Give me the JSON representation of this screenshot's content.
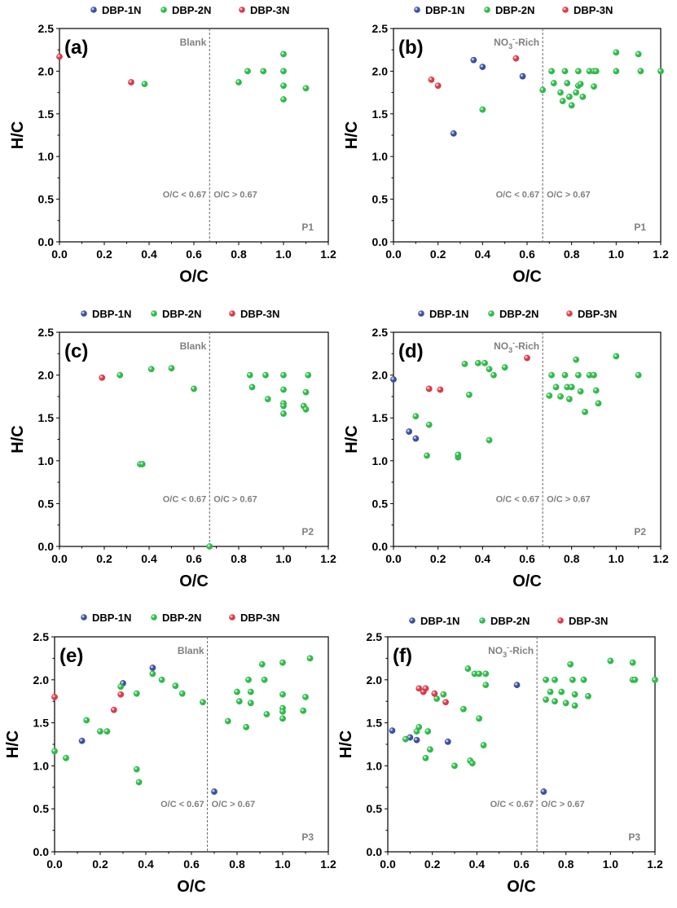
{
  "legend": [
    {
      "name": "DBP-1N",
      "color": "#3c4fa0"
    },
    {
      "name": "DBP-2N",
      "color": "#2fba4a"
    },
    {
      "name": "DBP-3N",
      "color": "#d93a4a"
    }
  ],
  "divider": 0.67,
  "region_left": "O/C < 0.67",
  "region_right": "O/C > 0.67",
  "chart_data": [
    {
      "type": "scatter",
      "label": "(a)",
      "condition": "Blank",
      "condition_sub": "",
      "phase": "P1",
      "xlabel": "O/C",
      "ylabel": "H/C",
      "xlim": [
        0,
        1.2
      ],
      "ylim": [
        0,
        2.5
      ],
      "xticks": [
        "0.0",
        "0.2",
        "0.4",
        "0.6",
        "0.8",
        "1.0",
        "1.2"
      ],
      "yticks": [
        "0.0",
        "0.5",
        "1.0",
        "1.5",
        "2.0",
        "2.5"
      ],
      "grid": false,
      "series": [
        {
          "name": "DBP-1N",
          "points": []
        },
        {
          "name": "DBP-2N",
          "points": [
            [
              0.38,
              1.85
            ],
            [
              0.8,
              1.87
            ],
            [
              0.84,
              2.0
            ],
            [
              0.91,
              2.0
            ],
            [
              1.0,
              2.2
            ],
            [
              1.0,
              2.0
            ],
            [
              1.0,
              1.83
            ],
            [
              1.0,
              1.67
            ],
            [
              1.1,
              1.8
            ]
          ]
        },
        {
          "name": "DBP-3N",
          "points": [
            [
              0.0,
              2.17
            ],
            [
              0.32,
              1.87
            ]
          ]
        }
      ]
    },
    {
      "type": "scatter",
      "label": "(b)",
      "condition": "NO",
      "condition_sub": "3",
      "condition_sup": "-",
      "condition_tail": "-Rich",
      "phase": "P1",
      "xlabel": "O/C",
      "ylabel": "H/C",
      "xlim": [
        0,
        1.2
      ],
      "ylim": [
        0,
        2.5
      ],
      "xticks": [
        "0.0",
        "0.2",
        "0.4",
        "0.6",
        "0.8",
        "1.0",
        "1.2"
      ],
      "yticks": [
        "0.0",
        "0.5",
        "1.0",
        "1.5",
        "2.0",
        "2.5"
      ],
      "grid": false,
      "series": [
        {
          "name": "DBP-1N",
          "points": [
            [
              0.27,
              1.27
            ],
            [
              0.36,
              2.13
            ],
            [
              0.4,
              2.05
            ],
            [
              0.58,
              1.94
            ]
          ]
        },
        {
          "name": "DBP-2N",
          "points": [
            [
              0.4,
              1.55
            ],
            [
              0.67,
              1.78
            ],
            [
              0.71,
              2.0
            ],
            [
              0.72,
              1.86
            ],
            [
              0.75,
              1.75
            ],
            [
              0.76,
              1.65
            ],
            [
              0.77,
              2.0
            ],
            [
              0.78,
              1.86
            ],
            [
              0.79,
              1.7
            ],
            [
              0.8,
              1.6
            ],
            [
              0.82,
              1.75
            ],
            [
              0.83,
              2.0
            ],
            [
              0.83,
              1.83
            ],
            [
              0.84,
              1.85
            ],
            [
              0.85,
              1.7
            ],
            [
              0.88,
              2.0
            ],
            [
              0.9,
              2.0
            ],
            [
              0.9,
              1.82
            ],
            [
              0.91,
              2.0
            ],
            [
              1.0,
              2.22
            ],
            [
              1.0,
              2.0
            ],
            [
              1.1,
              2.2
            ],
            [
              1.11,
              2.0
            ],
            [
              1.2,
              2.0
            ]
          ]
        },
        {
          "name": "DBP-3N",
          "points": [
            [
              0.17,
              1.9
            ],
            [
              0.2,
              1.83
            ],
            [
              0.55,
              2.15
            ]
          ]
        }
      ]
    },
    {
      "type": "scatter",
      "label": "(c)",
      "condition": "Blank",
      "condition_sub": "",
      "phase": "P2",
      "xlabel": "O/C",
      "ylabel": "H/C",
      "xlim": [
        0,
        1.2
      ],
      "ylim": [
        0,
        2.5
      ],
      "xticks": [
        "0.0",
        "0.2",
        "0.4",
        "0.6",
        "0.8",
        "1.0",
        "1.2"
      ],
      "yticks": [
        "0.0",
        "0.5",
        "1.0",
        "1.5",
        "2.0",
        "2.5"
      ],
      "grid": false,
      "series": [
        {
          "name": "DBP-1N",
          "points": []
        },
        {
          "name": "DBP-2N",
          "points": [
            [
              0.27,
              2.0
            ],
            [
              0.36,
              0.96
            ],
            [
              0.37,
              0.96
            ],
            [
              0.41,
              2.07
            ],
            [
              0.5,
              2.08
            ],
            [
              0.6,
              1.84
            ],
            [
              0.67,
              0.0
            ],
            [
              0.85,
              2.0
            ],
            [
              0.86,
              1.86
            ],
            [
              0.92,
              2.0
            ],
            [
              0.93,
              1.72
            ],
            [
              1.0,
              2.0
            ],
            [
              1.0,
              1.83
            ],
            [
              1.0,
              1.67
            ],
            [
              1.0,
              1.64
            ],
            [
              1.0,
              1.55
            ],
            [
              1.09,
              1.64
            ],
            [
              1.1,
              1.8
            ],
            [
              1.1,
              1.6
            ],
            [
              1.11,
              2.0
            ]
          ]
        },
        {
          "name": "DBP-3N",
          "points": [
            [
              0.19,
              1.97
            ]
          ]
        }
      ]
    },
    {
      "type": "scatter",
      "label": "(d)",
      "condition": "NO",
      "condition_sub": "3",
      "condition_sup": "-",
      "condition_tail": "-Rich",
      "phase": "P2",
      "xlabel": "O/C",
      "ylabel": "H/C",
      "xlim": [
        0,
        1.2
      ],
      "ylim": [
        0,
        2.5
      ],
      "xticks": [
        "0.0",
        "0.2",
        "0.4",
        "0.6",
        "0.8",
        "1.0",
        "1.2"
      ],
      "yticks": [
        "0.0",
        "0.5",
        "1.0",
        "1.5",
        "2.0",
        "2.5"
      ],
      "grid": false,
      "series": [
        {
          "name": "DBP-1N",
          "points": [
            [
              0.0,
              1.95
            ],
            [
              0.07,
              1.34
            ],
            [
              0.1,
              1.26
            ]
          ]
        },
        {
          "name": "DBP-2N",
          "points": [
            [
              0.1,
              1.52
            ],
            [
              0.15,
              1.06
            ],
            [
              0.16,
              1.42
            ],
            [
              0.29,
              1.04
            ],
            [
              0.29,
              1.07
            ],
            [
              0.32,
              2.13
            ],
            [
              0.34,
              1.77
            ],
            [
              0.38,
              2.14
            ],
            [
              0.41,
              2.14
            ],
            [
              0.43,
              2.07
            ],
            [
              0.43,
              1.24
            ],
            [
              0.45,
              2.0
            ],
            [
              0.5,
              2.09
            ],
            [
              0.7,
              1.76
            ],
            [
              0.71,
              2.0
            ],
            [
              0.73,
              1.86
            ],
            [
              0.75,
              1.75
            ],
            [
              0.77,
              2.0
            ],
            [
              0.78,
              1.86
            ],
            [
              0.79,
              1.72
            ],
            [
              0.8,
              1.86
            ],
            [
              0.82,
              2.18
            ],
            [
              0.83,
              2.0
            ],
            [
              0.84,
              1.81
            ],
            [
              0.86,
              1.57
            ],
            [
              0.88,
              2.0
            ],
            [
              0.9,
              2.0
            ],
            [
              0.91,
              1.82
            ],
            [
              0.92,
              1.67
            ],
            [
              1.0,
              2.22
            ],
            [
              1.1,
              2.0
            ]
          ]
        },
        {
          "name": "DBP-3N",
          "points": [
            [
              0.16,
              1.84
            ],
            [
              0.21,
              1.83
            ],
            [
              0.6,
              2.2
            ]
          ]
        }
      ]
    },
    {
      "type": "scatter",
      "label": "(e)",
      "condition": "Blank",
      "condition_sub": "",
      "phase": "P3",
      "xlabel": "O/C",
      "ylabel": "H/C",
      "xlim": [
        0,
        1.2
      ],
      "ylim": [
        0,
        2.5
      ],
      "xticks": [
        "0.0",
        "0.2",
        "0.4",
        "0.6",
        "0.8",
        "1.0",
        "1.2"
      ],
      "yticks": [
        "0.0",
        "0.5",
        "1.0",
        "1.5",
        "2.0",
        "2.5"
      ],
      "grid": false,
      "series": [
        {
          "name": "DBP-1N",
          "points": [
            [
              0.12,
              1.29
            ],
            [
              0.3,
              1.96
            ],
            [
              0.43,
              2.14
            ],
            [
              0.7,
              0.7
            ]
          ]
        },
        {
          "name": "DBP-2N",
          "points": [
            [
              0.0,
              1.17
            ],
            [
              0.05,
              1.09
            ],
            [
              0.14,
              1.53
            ],
            [
              0.2,
              1.4
            ],
            [
              0.23,
              1.4
            ],
            [
              0.29,
              1.92
            ],
            [
              0.36,
              1.84
            ],
            [
              0.36,
              0.96
            ],
            [
              0.37,
              0.81
            ],
            [
              0.43,
              2.07
            ],
            [
              0.47,
              2.0
            ],
            [
              0.53,
              1.93
            ],
            [
              0.56,
              1.84
            ],
            [
              0.65,
              1.74
            ],
            [
              0.76,
              1.52
            ],
            [
              0.8,
              1.86
            ],
            [
              0.81,
              1.75
            ],
            [
              0.84,
              1.45
            ],
            [
              0.85,
              2.0
            ],
            [
              0.86,
              1.86
            ],
            [
              0.86,
              1.73
            ],
            [
              0.91,
              2.18
            ],
            [
              0.92,
              2.0
            ],
            [
              0.93,
              1.6
            ],
            [
              1.0,
              2.2
            ],
            [
              1.0,
              1.83
            ],
            [
              1.0,
              1.67
            ],
            [
              1.0,
              1.63
            ],
            [
              1.0,
              1.55
            ],
            [
              1.09,
              1.64
            ],
            [
              1.1,
              1.8
            ],
            [
              1.12,
              2.25
            ]
          ]
        },
        {
          "name": "DBP-3N",
          "points": [
            [
              0.0,
              1.8
            ],
            [
              0.26,
              1.65
            ],
            [
              0.29,
              1.83
            ]
          ]
        }
      ]
    },
    {
      "type": "scatter",
      "label": "(f)",
      "condition": "NO",
      "condition_sub": "3",
      "condition_sup": "-",
      "condition_tail": "-Rich",
      "phase": "P3",
      "xlabel": "O/C",
      "ylabel": "H/C",
      "xlim": [
        0,
        1.2
      ],
      "ylim": [
        0,
        2.5
      ],
      "xticks": [
        "0.0",
        "0.2",
        "0.4",
        "0.6",
        "0.8",
        "1.0",
        "1.2"
      ],
      "yticks": [
        "0.0",
        "0.5",
        "1.0",
        "1.5",
        "2.0",
        "2.5"
      ],
      "grid": false,
      "series": [
        {
          "name": "DBP-1N",
          "points": [
            [
              0.02,
              1.41
            ],
            [
              0.1,
              1.33
            ],
            [
              0.13,
              1.3
            ],
            [
              0.27,
              1.28
            ],
            [
              0.58,
              1.94
            ],
            [
              0.7,
              0.7
            ]
          ]
        },
        {
          "name": "DBP-2N",
          "points": [
            [
              0.08,
              1.31
            ],
            [
              0.13,
              1.4
            ],
            [
              0.14,
              1.45
            ],
            [
              0.17,
              1.09
            ],
            [
              0.18,
              1.4
            ],
            [
              0.19,
              1.19
            ],
            [
              0.22,
              1.78
            ],
            [
              0.25,
              1.83
            ],
            [
              0.3,
              1.0
            ],
            [
              0.34,
              1.66
            ],
            [
              0.36,
              2.13
            ],
            [
              0.37,
              1.06
            ],
            [
              0.38,
              1.03
            ],
            [
              0.39,
              2.07
            ],
            [
              0.41,
              2.07
            ],
            [
              0.41,
              1.55
            ],
            [
              0.43,
              1.24
            ],
            [
              0.44,
              2.07
            ],
            [
              0.44,
              1.94
            ],
            [
              0.71,
              1.77
            ],
            [
              0.71,
              2.0
            ],
            [
              0.73,
              1.86
            ],
            [
              0.75,
              2.0
            ],
            [
              0.75,
              1.75
            ],
            [
              0.78,
              1.86
            ],
            [
              0.8,
              1.73
            ],
            [
              0.82,
              2.18
            ],
            [
              0.83,
              2.0
            ],
            [
              0.84,
              1.7
            ],
            [
              0.84,
              1.83
            ],
            [
              0.88,
              2.0
            ],
            [
              0.9,
              1.81
            ],
            [
              1.0,
              2.22
            ],
            [
              1.1,
              2.0
            ],
            [
              1.1,
              2.2
            ],
            [
              1.11,
              2.0
            ],
            [
              1.2,
              2.0
            ]
          ]
        },
        {
          "name": "DBP-3N",
          "points": [
            [
              0.14,
              1.9
            ],
            [
              0.16,
              1.86
            ],
            [
              0.17,
              1.9
            ],
            [
              0.21,
              1.84
            ],
            [
              0.26,
              1.74
            ]
          ]
        }
      ]
    }
  ]
}
